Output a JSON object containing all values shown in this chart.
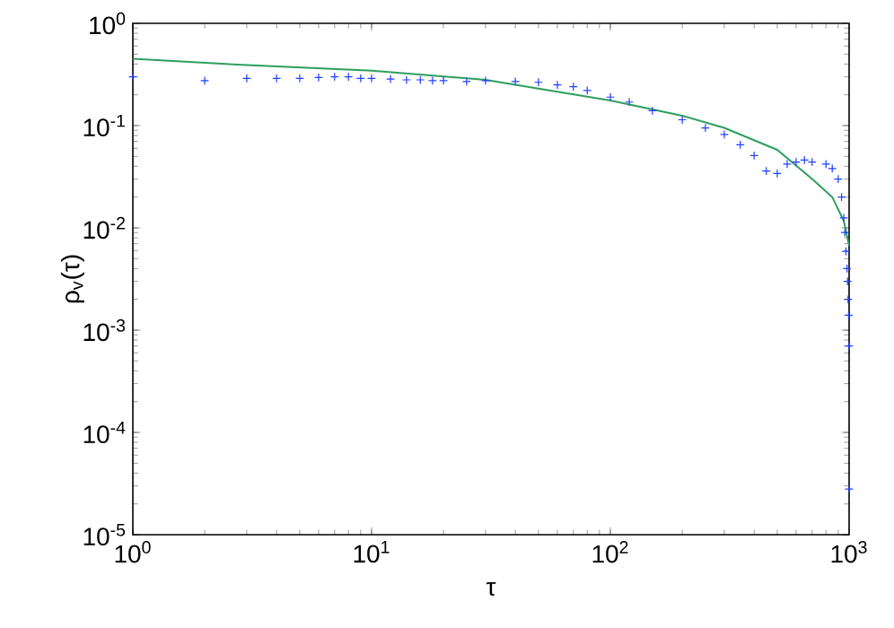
{
  "chart_data": {
    "type": "scatter",
    "xlabel": "τ",
    "ylabel": "ρ$_{v}$(τ)",
    "log": "xy",
    "xlim": [
      1,
      1000
    ],
    "ylim": [
      1e-05,
      1
    ],
    "xticks": [
      {
        "value": 1,
        "label": "10$^{0}$"
      },
      {
        "value": 10,
        "label": "10$^{1}$"
      },
      {
        "value": 100,
        "label": "10$^{2}$"
      },
      {
        "value": 1000,
        "label": "10$^{3}$"
      }
    ],
    "yticks": [
      {
        "value": 1e-05,
        "label": "10$^{-5}$"
      },
      {
        "value": 0.0001,
        "label": "10$^{-4}$"
      },
      {
        "value": 0.001,
        "label": "10$^{-3}$"
      },
      {
        "value": 0.01,
        "label": "10$^{-2}$"
      },
      {
        "value": 0.1,
        "label": "10$^{-1}$"
      },
      {
        "value": 1,
        "label": "10$^{0}$"
      }
    ],
    "series": [
      {
        "marker": "cross",
        "color": "#1e40ff",
        "x": [
          1,
          2,
          3,
          4,
          5,
          6,
          7,
          8,
          9,
          10,
          12,
          14,
          16,
          18,
          20,
          25,
          30,
          40,
          50,
          60,
          70,
          80,
          100,
          120,
          150,
          200,
          250,
          300,
          350,
          400,
          450,
          500,
          550,
          600,
          650,
          700,
          800,
          850,
          900,
          930,
          950,
          960,
          970,
          980,
          985,
          990,
          995,
          998,
          999
        ],
        "values": [
          0.3,
          0.275,
          0.29,
          0.29,
          0.29,
          0.295,
          0.3,
          0.3,
          0.29,
          0.29,
          0.285,
          0.28,
          0.28,
          0.275,
          0.275,
          0.27,
          0.275,
          0.27,
          0.265,
          0.25,
          0.24,
          0.22,
          0.19,
          0.17,
          0.14,
          0.114,
          0.095,
          0.082,
          0.065,
          0.051,
          0.036,
          0.034,
          0.042,
          0.044,
          0.046,
          0.044,
          0.042,
          0.038,
          0.03,
          0.02,
          0.0125,
          0.009,
          0.0059,
          0.004,
          0.003,
          0.002,
          0.0014,
          0.0007,
          2.8e-05
        ]
      },
      {
        "type": "line",
        "marker": "none",
        "color": "#2e9e5e",
        "x": [
          1,
          3,
          10,
          30,
          100,
          200,
          300,
          500,
          700,
          850,
          950,
          1000
        ],
        "values": [
          0.45,
          0.39,
          0.345,
          0.28,
          0.176,
          0.125,
          0.095,
          0.058,
          0.03,
          0.02,
          0.0117,
          0.0067
        ]
      }
    ]
  }
}
